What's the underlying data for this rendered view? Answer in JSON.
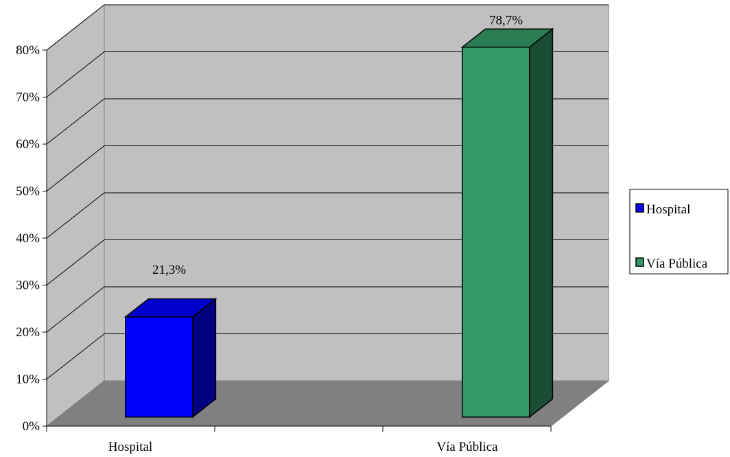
{
  "chart_data": {
    "type": "bar",
    "style": "3d",
    "categories": [
      "Hospital",
      "Vía Pública"
    ],
    "series": [
      {
        "values": [
          21.3,
          78.7
        ]
      }
    ],
    "data_labels": [
      "21,3%",
      "78,7%"
    ],
    "y_ticks": [
      "0%",
      "10%",
      "20%",
      "30%",
      "40%",
      "50%",
      "60%",
      "70%",
      "80%"
    ],
    "ylim": [
      0,
      80
    ],
    "grid": true,
    "legend": {
      "placement": "right",
      "entries": [
        {
          "label": "Hospital",
          "color": "#0000ff"
        },
        {
          "label": "Vía Pública",
          "color": "#339966"
        }
      ]
    },
    "colors": {
      "back_wall": "#c0c0c0",
      "side_wall": "#c0c0c0",
      "floor": "#808080",
      "bar_front": [
        "#0000ff",
        "#339966"
      ],
      "bar_side": [
        "#000080",
        "#1b4d35"
      ],
      "bar_top": [
        "#0000cc",
        "#2a7d52"
      ]
    }
  }
}
